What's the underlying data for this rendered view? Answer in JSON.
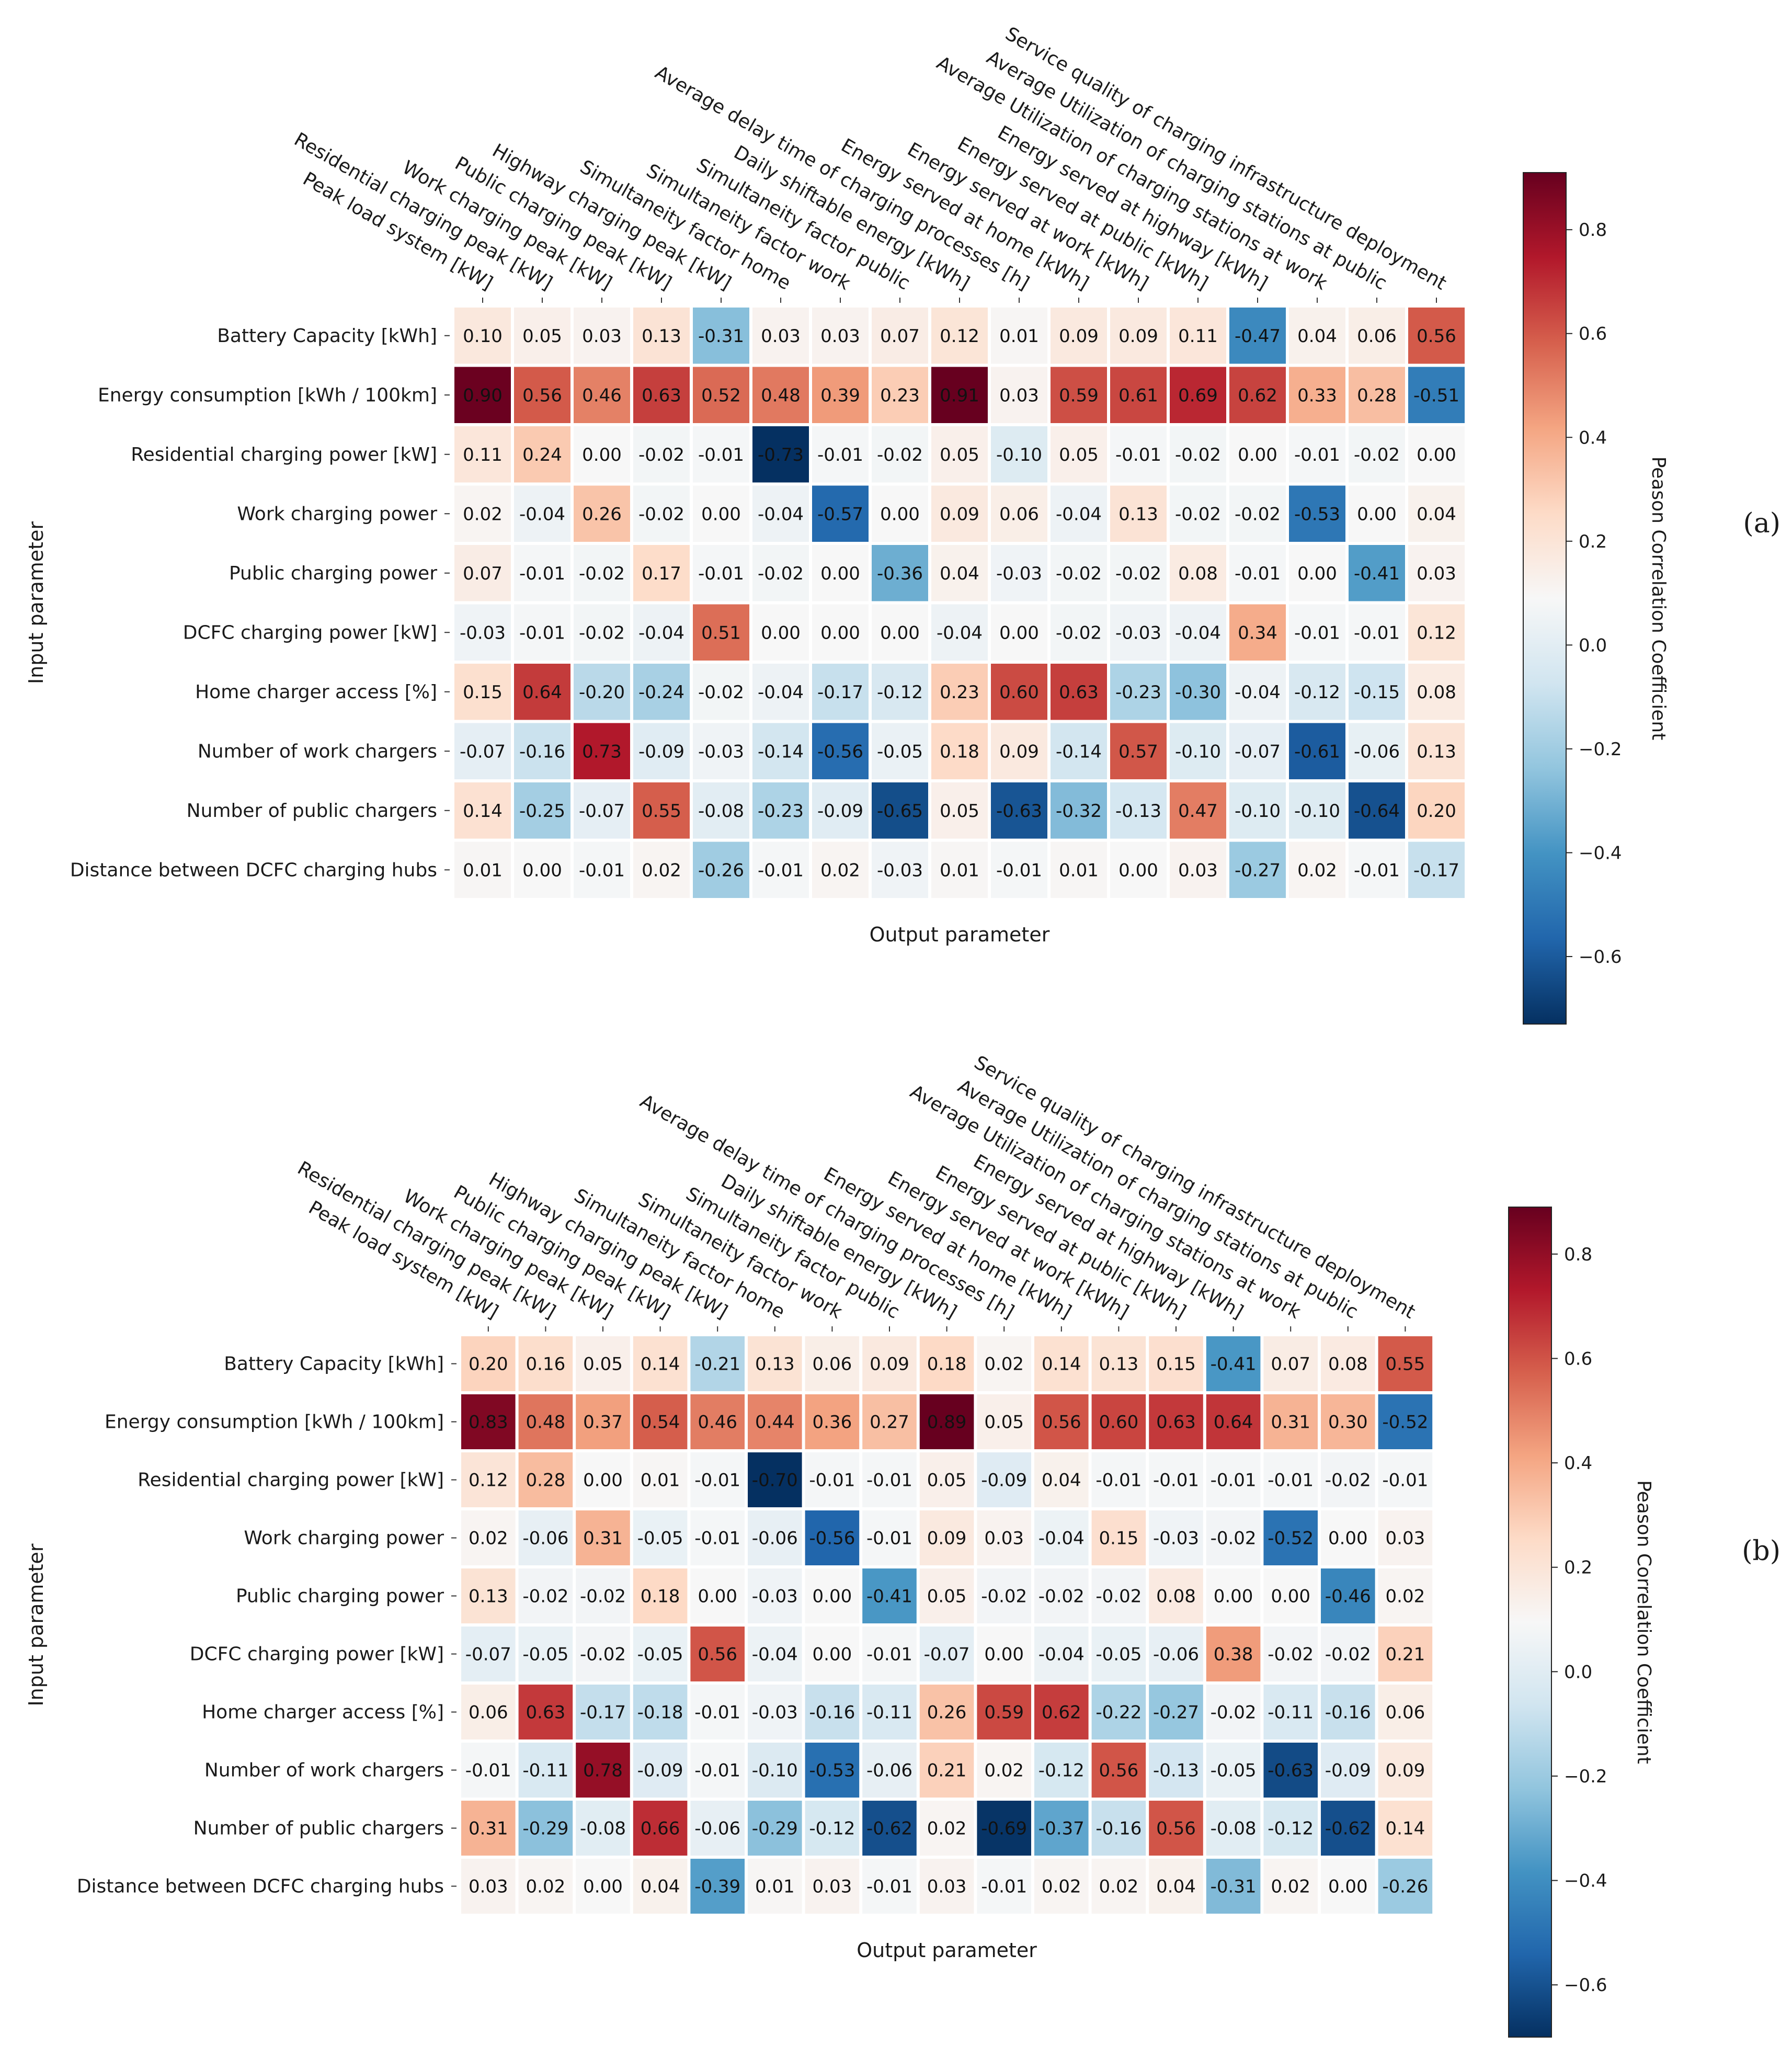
{
  "chart_data": [
    {
      "type": "heatmap",
      "panel_label": "(a)",
      "xlabel": "Output parameter",
      "ylabel": "Input parameter",
      "colorbar": {
        "title": "Peason Correlation Coefficient",
        "range": [
          -0.73,
          0.91
        ],
        "ticks": [
          0.8,
          0.6,
          0.4,
          0.2,
          0.0,
          -0.2,
          -0.4,
          -0.6
        ],
        "tick_labels": [
          "0.8",
          "0.6",
          "0.4",
          "0.2",
          "0.0",
          "−0.2",
          "−0.4",
          "−0.6"
        ]
      },
      "columns": [
        "Peak load system [kW]",
        "Residential charging peak [kW]",
        "Work charging peak [kW]",
        "Public charging peak [kW]",
        "Highway charging peak [kW]",
        "Simultaneity factor home",
        "Simultaneity factor work",
        "Simultaneity factor public",
        "Daily shiftable energy [kWh]",
        "Average delay time of charging processes [h]",
        "Energy served at home [kWh]",
        "Energy served at work [kWh]",
        "Energy served at public [kWh]",
        "Energy served at highway [kWh]",
        "Average Utilization of charging stations at work",
        "Average Utilization of charging stations at public",
        "Service quality of charging infrastructure deployment"
      ],
      "rows": [
        "Battery Capacity [kWh]",
        "Energy consumption [kWh / 100km]",
        "Residential charging power [kW]",
        "Work charging power",
        "Public charging power",
        "DCFC charging power [kW]",
        "Home charger access [%]",
        "Number of work chargers",
        "Number of public chargers",
        "Distance between DCFC charging hubs"
      ],
      "values": [
        [
          0.1,
          0.05,
          0.03,
          0.13,
          -0.31,
          0.03,
          0.03,
          0.07,
          0.12,
          0.01,
          0.09,
          0.09,
          0.11,
          -0.47,
          0.04,
          0.06,
          0.56
        ],
        [
          0.9,
          0.56,
          0.46,
          0.63,
          0.52,
          0.48,
          0.39,
          0.23,
          0.91,
          0.03,
          0.59,
          0.61,
          0.69,
          0.62,
          0.33,
          0.28,
          -0.51
        ],
        [
          0.11,
          0.24,
          0.0,
          -0.02,
          -0.01,
          -0.73,
          -0.01,
          -0.02,
          0.05,
          -0.1,
          0.05,
          -0.01,
          -0.02,
          -0.0,
          -0.01,
          -0.02,
          -0.0
        ],
        [
          0.02,
          -0.04,
          0.26,
          -0.02,
          -0.0,
          -0.04,
          -0.57,
          -0.0,
          0.09,
          0.06,
          -0.04,
          0.13,
          -0.02,
          -0.02,
          -0.53,
          0.0,
          0.04
        ],
        [
          0.07,
          -0.01,
          -0.02,
          0.17,
          -0.01,
          -0.02,
          0.0,
          -0.36,
          0.04,
          -0.03,
          -0.02,
          -0.02,
          0.08,
          -0.01,
          -0.0,
          -0.41,
          0.03
        ],
        [
          -0.03,
          -0.01,
          -0.02,
          -0.04,
          0.51,
          0.0,
          0.0,
          0.0,
          -0.04,
          -0.0,
          -0.02,
          -0.03,
          -0.04,
          0.34,
          -0.01,
          -0.01,
          0.12
        ],
        [
          0.15,
          0.64,
          -0.2,
          -0.24,
          -0.02,
          -0.04,
          -0.17,
          -0.12,
          0.23,
          0.6,
          0.63,
          -0.23,
          -0.3,
          -0.04,
          -0.12,
          -0.15,
          0.08
        ],
        [
          -0.07,
          -0.16,
          0.73,
          -0.09,
          -0.03,
          -0.14,
          -0.56,
          -0.05,
          0.18,
          0.09,
          -0.14,
          0.57,
          -0.1,
          -0.07,
          -0.61,
          -0.06,
          0.13
        ],
        [
          0.14,
          -0.25,
          -0.07,
          0.55,
          -0.08,
          -0.23,
          -0.09,
          -0.65,
          0.05,
          -0.63,
          -0.32,
          -0.13,
          0.47,
          -0.1,
          -0.1,
          -0.64,
          0.2
        ],
        [
          0.01,
          0.0,
          -0.01,
          0.02,
          -0.26,
          -0.01,
          0.02,
          -0.03,
          0.01,
          -0.01,
          0.01,
          0.0,
          0.03,
          -0.27,
          0.02,
          -0.01,
          -0.17
        ]
      ]
    },
    {
      "type": "heatmap",
      "panel_label": "(b)",
      "xlabel": "Output parameter",
      "ylabel": "Input parameter",
      "colorbar": {
        "title": "Peason Correlation Coefficient",
        "range": [
          -0.7,
          0.89
        ],
        "ticks": [
          0.8,
          0.6,
          0.4,
          0.2,
          0.0,
          -0.2,
          -0.4,
          -0.6
        ],
        "tick_labels": [
          "0.8",
          "0.6",
          "0.4",
          "0.2",
          "0.0",
          "−0.2",
          "−0.4",
          "−0.6"
        ]
      },
      "columns": [
        "Peak load system [kW]",
        "Residential charging peak [kW]",
        "Work charging peak [kW]",
        "Public charging peak [kW]",
        "Highway charging peak [kW]",
        "Simultaneity factor home",
        "Simultaneity factor work",
        "Simultaneity factor public",
        "Daily shiftable energy [kWh]",
        "Average delay time of charging processes [h]",
        "Energy served at home [kWh]",
        "Energy served at work [kWh]",
        "Energy served at public [kWh]",
        "Energy served at highway [kWh]",
        "Average Utilization of charging stations at work",
        "Average Utilization of charging stations at public",
        "Service quality of charging infrastructure deployment"
      ],
      "rows": [
        "Battery Capacity [kWh]",
        "Energy consumption [kWh / 100km]",
        "Residential charging power [kW]",
        "Work charging power",
        "Public charging power",
        "DCFC charging power [kW]",
        "Home charger access [%]",
        "Number of work chargers",
        "Number of public chargers",
        "Distance between DCFC charging hubs"
      ],
      "values": [
        [
          0.2,
          0.16,
          0.05,
          0.14,
          -0.21,
          0.13,
          0.06,
          0.09,
          0.18,
          0.02,
          0.14,
          0.13,
          0.15,
          -0.41,
          0.07,
          0.08,
          0.55
        ],
        [
          0.83,
          0.48,
          0.37,
          0.54,
          0.46,
          0.44,
          0.36,
          0.27,
          0.89,
          0.05,
          0.56,
          0.6,
          0.63,
          0.64,
          0.31,
          0.3,
          -0.52
        ],
        [
          0.12,
          0.28,
          0.0,
          0.01,
          -0.01,
          -0.7,
          -0.01,
          -0.01,
          0.05,
          -0.09,
          0.04,
          -0.01,
          -0.01,
          -0.01,
          -0.01,
          -0.02,
          -0.01
        ],
        [
          0.02,
          -0.06,
          0.31,
          -0.05,
          -0.01,
          -0.06,
          -0.56,
          -0.01,
          0.09,
          0.03,
          -0.04,
          0.15,
          -0.03,
          -0.02,
          -0.52,
          0.0,
          0.03
        ],
        [
          0.13,
          -0.02,
          -0.02,
          0.18,
          -0.0,
          -0.03,
          0.0,
          -0.41,
          0.05,
          -0.02,
          -0.02,
          -0.02,
          0.08,
          -0.0,
          -0.0,
          -0.46,
          0.02
        ],
        [
          -0.07,
          -0.05,
          -0.02,
          -0.05,
          0.56,
          -0.04,
          -0.0,
          -0.01,
          -0.07,
          -0.0,
          -0.04,
          -0.05,
          -0.06,
          0.38,
          -0.02,
          -0.02,
          0.21
        ],
        [
          0.06,
          0.63,
          -0.17,
          -0.18,
          -0.01,
          -0.03,
          -0.16,
          -0.11,
          0.26,
          0.59,
          0.62,
          -0.22,
          -0.27,
          -0.02,
          -0.11,
          -0.16,
          0.06
        ],
        [
          -0.01,
          -0.11,
          0.78,
          -0.09,
          -0.01,
          -0.1,
          -0.53,
          -0.06,
          0.21,
          0.02,
          -0.12,
          0.56,
          -0.13,
          -0.05,
          -0.63,
          -0.09,
          0.09
        ],
        [
          0.31,
          -0.29,
          -0.08,
          0.66,
          -0.06,
          -0.29,
          -0.12,
          -0.62,
          0.02,
          -0.69,
          -0.37,
          -0.16,
          0.56,
          -0.08,
          -0.12,
          -0.62,
          0.14
        ],
        [
          0.03,
          0.02,
          -0.0,
          0.04,
          -0.39,
          0.01,
          0.03,
          -0.01,
          0.03,
          -0.01,
          0.02,
          0.02,
          0.04,
          -0.31,
          0.02,
          0.0,
          -0.26
        ]
      ]
    }
  ]
}
